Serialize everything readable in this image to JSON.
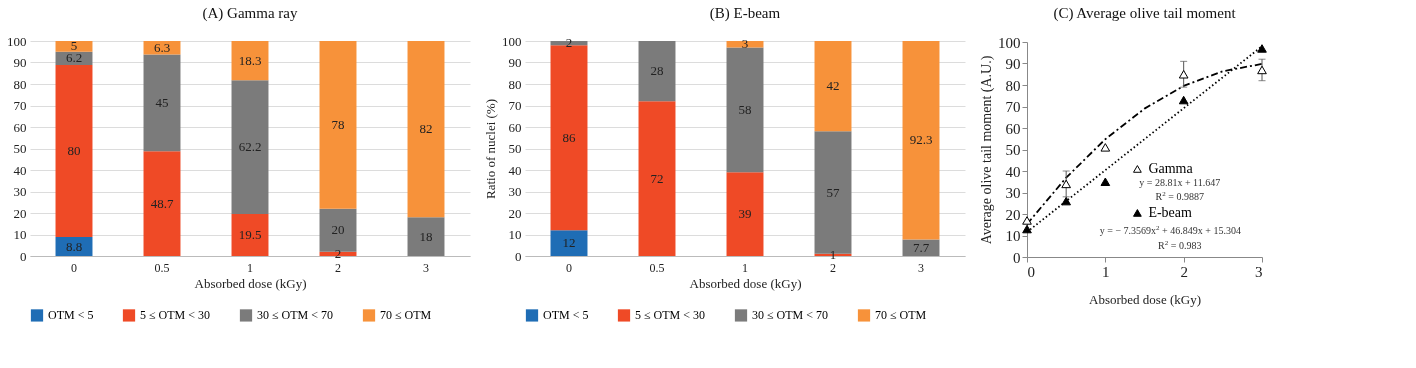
{
  "chart_data": [
    {
      "type": "bar",
      "title": "(A) Gamma ray",
      "xlabel": "Absorbed dose (kGy)",
      "categories": [
        "0",
        "0.5",
        "1",
        "2",
        "3"
      ],
      "stacked": true,
      "series": [
        {
          "name": "OTM < 5",
          "color": "#1f6db5",
          "values": [
            8.8,
            null,
            null,
            null,
            null
          ]
        },
        {
          "name": "5 ≤ OTM < 30",
          "color": "#ef4a26",
          "values": [
            80,
            48.7,
            19.5,
            2,
            null
          ]
        },
        {
          "name": "30 ≤ OTM < 70",
          "color": "#7b7b7b",
          "values": [
            6.2,
            45,
            62.2,
            20,
            18
          ]
        },
        {
          "name": "70 ≤ OTM",
          "color": "#f7923a",
          "values": [
            5,
            6.3,
            18.3,
            78,
            82
          ]
        }
      ],
      "ylim": [
        0,
        100
      ],
      "yticks": [
        0,
        10,
        20,
        30,
        40,
        50,
        60,
        70,
        80,
        90,
        100
      ],
      "grid": "y",
      "legend": "bottom",
      "data_labels": true
    },
    {
      "type": "bar",
      "title": "(B) E-beam",
      "xlabel": "Absorbed dose (kGy)",
      "ylabel": "Ratio of nuclei (%)",
      "categories": [
        "0",
        "0.5",
        "1",
        "2",
        "3"
      ],
      "stacked": true,
      "series": [
        {
          "name": "OTM < 5",
          "color": "#1f6db5",
          "values": [
            12,
            null,
            null,
            null,
            null
          ]
        },
        {
          "name": "5 ≤ OTM < 30",
          "color": "#ef4a26",
          "values": [
            86,
            72,
            39,
            1,
            null
          ]
        },
        {
          "name": "30 ≤ OTM < 70",
          "color": "#7b7b7b",
          "values": [
            2,
            28,
            58,
            57,
            7.7
          ]
        },
        {
          "name": "70 ≤ OTM",
          "color": "#f7923a",
          "values": [
            null,
            null,
            3,
            42,
            92.3
          ]
        }
      ],
      "ylim": [
        0,
        100
      ],
      "yticks": [
        0,
        10,
        20,
        30,
        40,
        50,
        60,
        70,
        80,
        90,
        100
      ],
      "grid": "y",
      "legend": "bottom",
      "data_labels": true
    },
    {
      "type": "scatter",
      "title": "(C) Average olive tail moment",
      "xlabel": "Absorbed dose (kGy)",
      "ylabel": "Average olive tail moment (A.U.)",
      "x": [
        0,
        0.5,
        1,
        2,
        3
      ],
      "series": [
        {
          "type": "line",
          "color": "#000000",
          "line_style": "dotted",
          "x": [
            0,
            3
          ],
          "values": [
            11.6,
            98
          ]
        },
        {
          "type": "line",
          "color": "#000000",
          "line_style": "dashed",
          "x": [
            0,
            0.5,
            1,
            1.5,
            2,
            2.5,
            3
          ],
          "values": [
            15.3,
            36.9,
            54.8,
            69,
            79.6,
            86.4,
            89.8
          ]
        },
        {
          "name": "Gamma",
          "color": "#ffffff",
          "marker": "triangle",
          "values": [
            17,
            34,
            51,
            85,
            87
          ],
          "errors": [
            null,
            6,
            null,
            6,
            5
          ]
        },
        {
          "name": "E-beam",
          "color": "#000000",
          "marker": "triangle",
          "values": [
            13,
            26,
            35,
            73,
            97
          ]
        }
      ],
      "xlim": [
        0,
        3
      ],
      "xticks": [
        0,
        1,
        2,
        3
      ],
      "ylim": [
        0,
        100
      ],
      "yticks": [
        0,
        10,
        20,
        30,
        40,
        50,
        60,
        70,
        80,
        90,
        100
      ],
      "legend": "right",
      "annotations": [
        "y = 28.81x + 11.647",
        "R$^{2}$ = 0.9887",
        "y = − 7.3569x$^{2}$ + 46.849x + 15.304",
        "R$^{2}$ = 0.983"
      ]
    }
  ]
}
